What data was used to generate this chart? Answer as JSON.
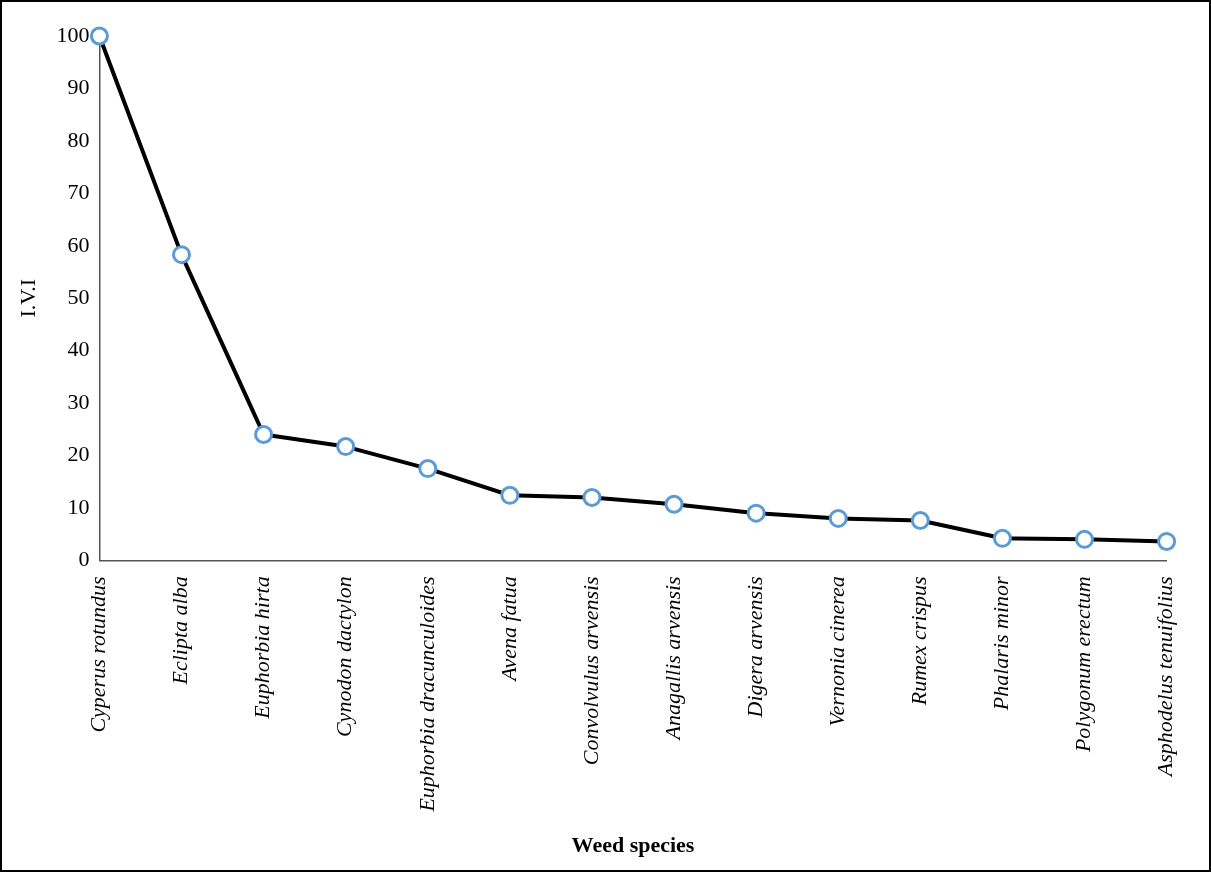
{
  "chart_data": {
    "type": "line",
    "xlabel": "Weed species",
    "ylabel": "I.V.I",
    "categories": [
      "Cyperus rotundus",
      "Eclipta alba",
      "Euphorbia hirta",
      "Cynodon dactylon",
      "Euphorbia dracunculoides",
      "Avena fatua",
      "Convolvulus arvensis",
      "Anagallis arvensis",
      "Digera arvensis",
      "Vernonia cinerea",
      "Rumex crispus",
      "Phalaris minor",
      "Polygonum erectum",
      "Asphodelus tenuifolius"
    ],
    "series": [
      {
        "color": "#000000",
        "values": [
          100,
          58.3,
          24,
          21.7,
          17.5,
          12.4,
          12,
          10.7,
          9,
          8,
          7.6,
          4.2,
          4,
          3.6
        ]
      }
    ],
    "ylim": [
      0,
      100
    ],
    "yticks": [
      0,
      10,
      20,
      30,
      40,
      50,
      60,
      70,
      80,
      90,
      100
    ],
    "grid": false,
    "legend": false,
    "marker": "circle",
    "line_style": "solid"
  }
}
